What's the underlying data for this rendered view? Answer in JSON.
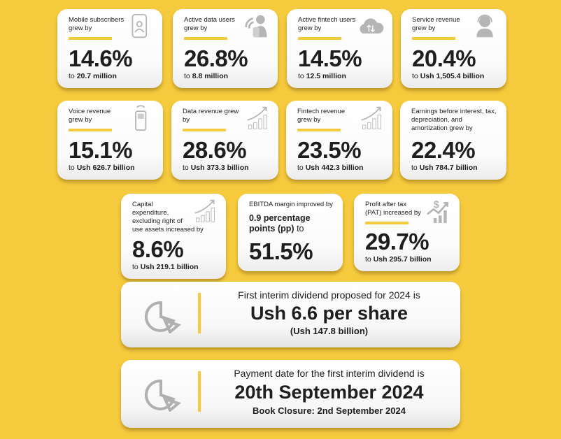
{
  "colors": {
    "background": "#f6ca3d",
    "accent": "#f6ca3d",
    "icon": "#a8a8a8"
  },
  "cards": [
    {
      "title": "Mobile subscribers grew by",
      "value": "14.6%",
      "prefix": "to",
      "detail": "20.7 million",
      "icon": "phone-user-icon"
    },
    {
      "title": "Active data users grew by",
      "value": "26.8%",
      "prefix": "to",
      "detail": "8.8 million",
      "icon": "wifi-user-icon"
    },
    {
      "title": "Active fintech users grew by",
      "value": "14.5%",
      "prefix": "to",
      "detail": "12.5 million",
      "icon": "cloud-transfer-icon"
    },
    {
      "title": "Service revenue grew by",
      "value": "20.4%",
      "prefix": "to",
      "detail": "Ush 1,505.4 billion",
      "icon": "headset-agent-icon"
    },
    {
      "title": "Voice revenue grew by",
      "value": "15.1%",
      "prefix": "to",
      "detail": "Ush 626.7 billion",
      "icon": "mobile-phone-icon"
    },
    {
      "title": "Data revenue grew by",
      "value": "28.6%",
      "prefix": "to",
      "detail": "Ush 373.3 billion",
      "icon": "growth-chart-icon"
    },
    {
      "title": "Fintech revenue grew by",
      "value": "23.5%",
      "prefix": "to",
      "detail": "Ush 442.3 billion",
      "icon": "growth-chart-icon"
    },
    {
      "title": "Earnings before interest, tax, depreciation, and amortization grew by",
      "value": "22.4%",
      "prefix": "to",
      "detail": "Ush 784.7 billion",
      "icon": ""
    },
    {
      "title": "Capital expenditure, excluding right of use assets increased by",
      "value": "8.6%",
      "prefix": "to",
      "detail": "Ush 219.1 billion",
      "icon": "growth-chart-icon"
    },
    {
      "title": "EBITDA margin improved by",
      "lead": "0.9 percentage points (pp)",
      "lead_suffix": "to",
      "value": "51.5%",
      "icon": ""
    },
    {
      "title": "Profit after tax (PAT) increased by",
      "value": "29.7%",
      "prefix": "to",
      "detail": "Ush 295.7 billion",
      "icon": "dollar-growth-icon"
    }
  ],
  "dividend": {
    "intro": "First interim dividend proposed for 2024 is",
    "amount": "Ush 6.6 per share",
    "total": "(Ush 147.8 billion)"
  },
  "payment": {
    "intro": "Payment date for the first interim dividend is",
    "date": "20th September 2024",
    "closure": "Book Closure: 2nd September 2024"
  }
}
